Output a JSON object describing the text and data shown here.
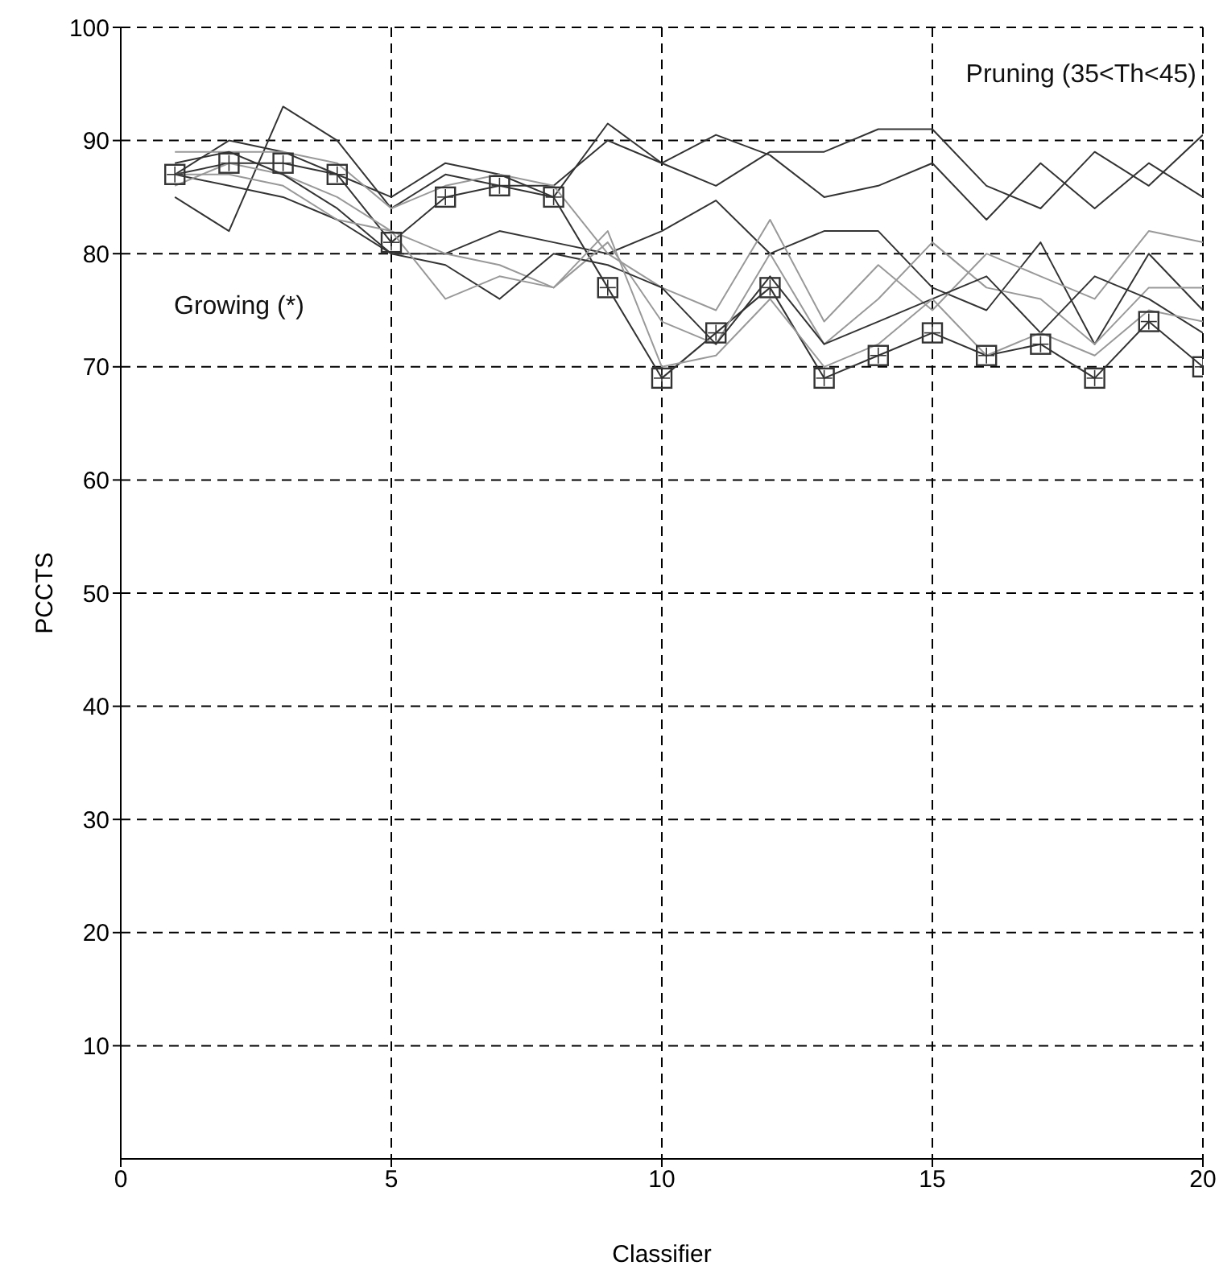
{
  "chart_data": {
    "type": "line",
    "xlabel": "Classifier",
    "ylabel": "PCCTS",
    "annotations": [
      "Pruning (35<Th<45)",
      "Growing (*)"
    ],
    "x": [
      1,
      2,
      3,
      4,
      5,
      6,
      7,
      8,
      9,
      10,
      11,
      12,
      13,
      14,
      15,
      16,
      17,
      18,
      19,
      20
    ],
    "xlim": [
      0,
      20
    ],
    "xticks": [
      0,
      5,
      10,
      15,
      20
    ],
    "ylim": [
      0,
      100
    ],
    "yticks": [
      10,
      20,
      30,
      40,
      50,
      60,
      70,
      80,
      90,
      100
    ],
    "grid": true,
    "line_style": "solid",
    "series": [
      {
        "color": "#333333",
        "marker": "square",
        "values": [
          87,
          88,
          88,
          87,
          81,
          85,
          86,
          85,
          77,
          69,
          73,
          77,
          69,
          71,
          73,
          71,
          72,
          69,
          74,
          70
        ]
      },
      {
        "color": "#333333",
        "values": [
          87,
          90,
          89,
          87,
          85,
          88,
          87,
          85,
          91.5,
          88,
          86,
          89,
          89,
          91,
          91,
          86,
          84,
          89,
          86,
          90.5
        ]
      },
      {
        "color": "#333333",
        "values": [
          85,
          82,
          93,
          90,
          84,
          87,
          86,
          86,
          90,
          88,
          90.5,
          88.7,
          85,
          86,
          88,
          83,
          88,
          84,
          88,
          85
        ]
      },
      {
        "color": "#333333",
        "values": [
          87,
          86,
          85,
          83,
          80,
          80,
          82,
          81,
          80,
          82,
          84.7,
          80,
          82,
          82,
          77,
          75,
          81,
          72,
          80,
          75
        ]
      },
      {
        "color": "#999999",
        "values": [
          89,
          89,
          89,
          88,
          84,
          86,
          87,
          86,
          80,
          77,
          75,
          83,
          74,
          79,
          75,
          80,
          78,
          76,
          82,
          81
        ]
      },
      {
        "color": "#999999",
        "values": [
          86,
          88,
          87,
          85,
          82,
          80,
          79,
          77,
          81,
          74,
          72,
          80,
          72,
          76,
          81,
          77,
          76,
          72,
          77,
          77
        ]
      },
      {
        "color": "#333333",
        "values": [
          88,
          89,
          87,
          84,
          80,
          79,
          76,
          80,
          79,
          77,
          72,
          78,
          72,
          74,
          76,
          78,
          73,
          78,
          76,
          73
        ]
      },
      {
        "color": "#999999",
        "values": [
          87,
          87,
          86,
          83,
          82,
          76,
          78,
          77,
          82,
          70,
          71,
          76,
          70,
          72,
          76,
          71,
          73,
          71,
          75,
          74
        ]
      }
    ]
  }
}
